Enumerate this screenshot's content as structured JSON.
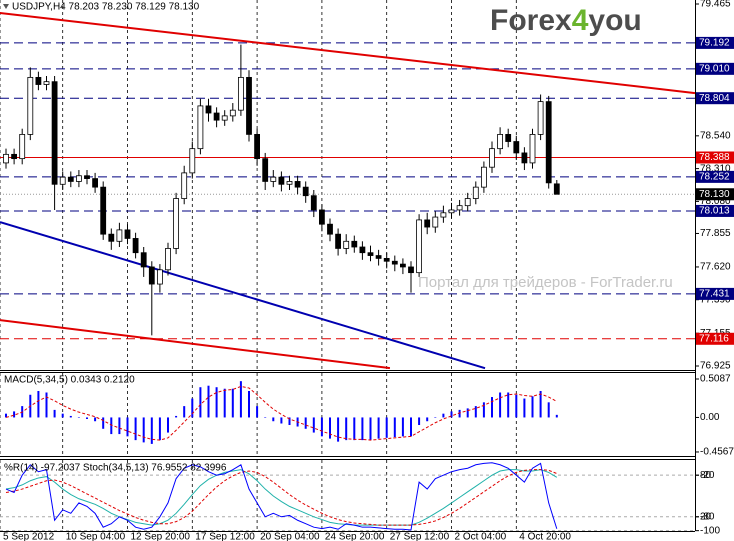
{
  "chart_data": [
    {
      "type": "candlestick",
      "title": "USDJPY,H4  78.203 78.230 78.129 78.130",
      "logo": [
        "Forex",
        "4",
        "you"
      ],
      "watermark": "Портал для трейдеров - ForTrader.ru",
      "up_color": "#ffffff",
      "down_color": "#000000",
      "open": [
        78.35,
        78.41,
        78.38,
        78.55,
        78.95,
        78.9,
        78.92,
        78.2,
        78.25,
        78.22,
        78.26,
        78.24,
        78.18,
        77.85,
        77.8,
        77.88,
        77.82,
        77.72,
        77.62,
        77.5,
        77.6,
        77.75,
        78.1,
        78.28,
        78.45,
        78.75,
        78.7,
        78.65,
        78.68,
        78.72,
        78.95,
        78.55,
        78.38,
        78.22,
        78.25,
        78.2,
        78.22,
        78.18,
        78.12,
        78.02,
        77.92,
        77.85,
        77.75,
        77.8,
        77.76,
        77.72,
        77.7,
        77.68,
        77.66,
        77.64,
        77.62,
        77.58,
        77.95,
        77.9,
        77.97,
        78.0,
        78.02,
        78.05,
        78.1,
        78.18,
        78.32,
        78.45,
        78.55,
        78.5,
        78.42,
        78.35,
        78.55,
        78.78,
        78.203
      ],
      "high": [
        78.45,
        78.45,
        78.59,
        79.02,
        78.99,
        78.96,
        78.96,
        78.29,
        78.29,
        78.3,
        78.3,
        78.28,
        78.22,
        77.89,
        77.93,
        77.92,
        77.86,
        77.76,
        77.66,
        77.64,
        77.79,
        78.14,
        78.33,
        78.5,
        78.8,
        78.8,
        78.74,
        78.72,
        78.77,
        79.18,
        79.0,
        78.59,
        78.42,
        78.3,
        78.29,
        78.26,
        78.26,
        78.22,
        78.16,
        78.06,
        77.96,
        77.89,
        77.85,
        77.84,
        77.8,
        77.77,
        77.74,
        77.72,
        77.7,
        77.68,
        77.66,
        77.99,
        78.0,
        78.01,
        78.05,
        78.07,
        78.09,
        78.14,
        78.22,
        78.36,
        78.5,
        78.6,
        78.59,
        78.54,
        78.46,
        78.59,
        78.83,
        78.82,
        78.23
      ],
      "low": [
        78.31,
        78.34,
        78.34,
        78.51,
        78.86,
        78.86,
        78.02,
        78.16,
        78.18,
        78.18,
        78.2,
        78.14,
        77.81,
        77.74,
        77.76,
        77.78,
        77.68,
        77.55,
        77.14,
        77.44,
        77.56,
        77.71,
        78.06,
        78.24,
        78.41,
        78.64,
        78.6,
        78.61,
        78.64,
        78.68,
        78.5,
        78.33,
        78.16,
        78.18,
        78.15,
        78.16,
        78.13,
        78.07,
        77.97,
        77.87,
        77.8,
        77.7,
        77.71,
        77.72,
        77.67,
        77.66,
        77.63,
        77.61,
        77.59,
        77.57,
        77.44,
        77.55,
        77.85,
        77.86,
        77.93,
        77.96,
        77.98,
        78.01,
        78.06,
        78.14,
        78.28,
        78.41,
        78.46,
        78.37,
        78.3,
        78.31,
        78.51,
        78.17,
        78.129
      ],
      "close": [
        78.41,
        78.38,
        78.55,
        78.95,
        78.9,
        78.92,
        78.2,
        78.25,
        78.22,
        78.26,
        78.24,
        78.18,
        77.85,
        77.8,
        77.88,
        77.82,
        77.72,
        77.62,
        77.5,
        77.6,
        77.75,
        78.1,
        78.28,
        78.45,
        78.75,
        78.7,
        78.65,
        78.68,
        78.72,
        78.95,
        78.55,
        78.38,
        78.22,
        78.25,
        78.2,
        78.22,
        78.18,
        78.12,
        78.02,
        77.92,
        77.85,
        77.75,
        77.8,
        77.76,
        77.72,
        77.7,
        77.68,
        77.66,
        77.64,
        77.62,
        77.58,
        77.95,
        77.9,
        77.97,
        78.0,
        78.02,
        78.05,
        78.1,
        78.18,
        78.32,
        78.45,
        78.55,
        78.5,
        78.42,
        78.35,
        78.55,
        78.78,
        78.21,
        78.13
      ],
      "ylim": [
        76.897,
        79.493
      ],
      "yticks": [
        79.465,
        {
          "value": 78.54,
          "label": "78.540"
        },
        {
          "value": 78.31,
          "label": "78.310"
        },
        {
          "value": 78.08,
          "label": "78.080"
        },
        77.855,
        {
          "value": 77.62,
          "label": "77.620"
        },
        {
          "value": 77.39,
          "label": "77.390"
        },
        77.155,
        76.925
      ],
      "xticks": [
        {
          "value": -0.74,
          "label": "5 Sep 2012"
        },
        {
          "value": 7,
          "label": "10 Sep 04:00"
        },
        {
          "value": 15,
          "label": "12 Sep 20:00"
        },
        {
          "value": 23,
          "label": "17 Sep 12:00"
        },
        {
          "value": 31,
          "label": "20 Sep 04:00"
        },
        {
          "value": 39,
          "label": "24 Sep 20:00"
        },
        {
          "value": 47,
          "label": "27 Sep 12:00"
        },
        {
          "value": 55,
          "label": "2 Oct 04:00"
        },
        {
          "value": 63,
          "label": "4 Oct 20:00"
        }
      ],
      "levels": [
        {
          "value": 79.192,
          "color": "#000080",
          "dash": true
        },
        {
          "value": 79.01,
          "label": "79.010",
          "color": "#000080",
          "dash": true
        },
        {
          "value": 78.804,
          "color": "#000080",
          "dash": true
        },
        {
          "value": 78.388,
          "color": "#e00000",
          "dash": false
        },
        {
          "value": 78.252,
          "color": "#000080",
          "dash": true
        },
        {
          "value": 78.013,
          "color": "#000080",
          "dash": true
        },
        {
          "value": 77.431,
          "color": "#000080",
          "dash": true
        },
        {
          "value": 77.116,
          "color": "#e00000",
          "dash": true
        }
      ],
      "current_price": {
        "value": 78.13,
        "label": "78.130",
        "color": "#000000"
      },
      "trendlines": [
        {
          "from": [
            -0.74,
            79.402
          ],
          "to": [
            85.06,
            78.84
          ],
          "color": "#e00000"
        },
        {
          "from": [
            -0.74,
            77.247
          ],
          "to": [
            47.4,
            76.91
          ],
          "color": "#e00000"
        },
        {
          "from": [
            -0.74,
            77.935
          ],
          "to": [
            59.14,
            76.91
          ],
          "color": "#0000b0"
        }
      ]
    },
    {
      "type": "macd",
      "title": "MACD(5,34,5) 0.0343 0.2120",
      "histogram_color": "#0000ff",
      "signal_color": "#e00000",
      "histogram": [
        0.05,
        0.08,
        0.15,
        0.3,
        0.35,
        0.33,
        0.1,
        0.05,
        0.02,
        0.0,
        -0.02,
        -0.05,
        -0.15,
        -0.22,
        -0.22,
        -0.25,
        -0.3,
        -0.33,
        -0.35,
        -0.3,
        -0.2,
        0.02,
        0.15,
        0.25,
        0.4,
        0.42,
        0.4,
        0.38,
        0.38,
        0.48,
        0.35,
        0.15,
        0.0,
        -0.05,
        -0.08,
        -0.1,
        -0.12,
        -0.15,
        -0.2,
        -0.25,
        -0.28,
        -0.32,
        -0.3,
        -0.3,
        -0.3,
        -0.3,
        -0.28,
        -0.27,
        -0.26,
        -0.25,
        -0.25,
        -0.1,
        -0.05,
        0.0,
        0.05,
        0.08,
        0.1,
        0.12,
        0.15,
        0.2,
        0.27,
        0.33,
        0.33,
        0.3,
        0.25,
        0.28,
        0.35,
        0.2,
        0.0343
      ],
      "signal": [
        0.0,
        0.03,
        0.07,
        0.15,
        0.22,
        0.27,
        0.22,
        0.16,
        0.11,
        0.07,
        0.04,
        0.01,
        -0.04,
        -0.1,
        -0.14,
        -0.18,
        -0.22,
        -0.26,
        -0.29,
        -0.3,
        -0.27,
        -0.17,
        -0.06,
        0.05,
        0.17,
        0.27,
        0.33,
        0.36,
        0.37,
        0.41,
        0.39,
        0.3,
        0.2,
        0.11,
        0.04,
        -0.02,
        -0.06,
        -0.1,
        -0.14,
        -0.18,
        -0.22,
        -0.26,
        -0.28,
        -0.29,
        -0.29,
        -0.3,
        -0.29,
        -0.28,
        -0.27,
        -0.26,
        -0.25,
        -0.19,
        -0.13,
        -0.07,
        -0.02,
        0.02,
        0.06,
        0.09,
        0.12,
        0.16,
        0.21,
        0.26,
        0.3,
        0.31,
        0.29,
        0.28,
        0.31,
        0.27,
        0.212
      ],
      "ylim": [
        -0.51,
        0.588
      ],
      "yticks": [
        0.5087,
        {
          "value": 0,
          "label": "0.00"
        },
        -0.4567
      ]
    },
    {
      "type": "oscillator",
      "title": "%R(14) -97.2037  Stoch(34,5,13) 76.9552 82.3996",
      "wpr_color": "#0000ff",
      "stoch_color": "#20b2aa",
      "stoch_signal_color": "#e00000",
      "wpr": [
        -40,
        -45,
        -20,
        -5,
        -15,
        -12,
        -85,
        -70,
        -75,
        -60,
        -65,
        -75,
        -95,
        -90,
        -80,
        -85,
        -95,
        -98,
        -95,
        -80,
        -60,
        -25,
        -10,
        -5,
        -8,
        -15,
        -20,
        -18,
        -12,
        -5,
        -40,
        -60,
        -80,
        -75,
        -80,
        -78,
        -85,
        -90,
        -95,
        -97,
        -95,
        -98,
        -90,
        -92,
        -95,
        -95,
        -96,
        -97,
        -98,
        -98,
        -99,
        -30,
        -40,
        -25,
        -20,
        -15,
        -12,
        -10,
        -5,
        -3,
        -2,
        -5,
        -10,
        -20,
        -30,
        -10,
        -3,
        -60,
        -97.2037
      ],
      "stoch_main": [
        60,
        62,
        66,
        72,
        76,
        78,
        70,
        60,
        52,
        46,
        42,
        38,
        32,
        25,
        20,
        16,
        12,
        10,
        8,
        10,
        15,
        25,
        38,
        52,
        65,
        74,
        80,
        84,
        86,
        88,
        82,
        72,
        60,
        50,
        42,
        35,
        30,
        25,
        20,
        16,
        12,
        10,
        9,
        8,
        8,
        8,
        8,
        8,
        8,
        8,
        8,
        12,
        18,
        25,
        32,
        40,
        48,
        56,
        64,
        72,
        80,
        86,
        88,
        88,
        86,
        86,
        88,
        84,
        76.9552
      ],
      "stoch_signal": [
        55,
        57,
        60,
        64,
        68,
        72,
        73,
        70,
        65,
        59,
        53,
        47,
        41,
        35,
        29,
        24,
        19,
        15,
        12,
        10,
        10,
        13,
        19,
        28,
        40,
        52,
        63,
        72,
        79,
        84,
        86,
        84,
        78,
        70,
        61,
        52,
        44,
        37,
        31,
        25,
        20,
        16,
        13,
        11,
        10,
        9,
        8,
        8,
        8,
        8,
        8,
        9,
        11,
        14,
        19,
        25,
        32,
        40,
        48,
        56,
        64,
        72,
        79,
        84,
        87,
        88,
        88,
        87,
        82.3996
      ],
      "ylim": [
        -100.5,
        1.9
      ],
      "yticks": [
        -20,
        -80,
        -100
      ],
      "y2lim": [
        -0.5,
        101.9
      ],
      "y2ticks": [
        20,
        80
      ]
    }
  ]
}
